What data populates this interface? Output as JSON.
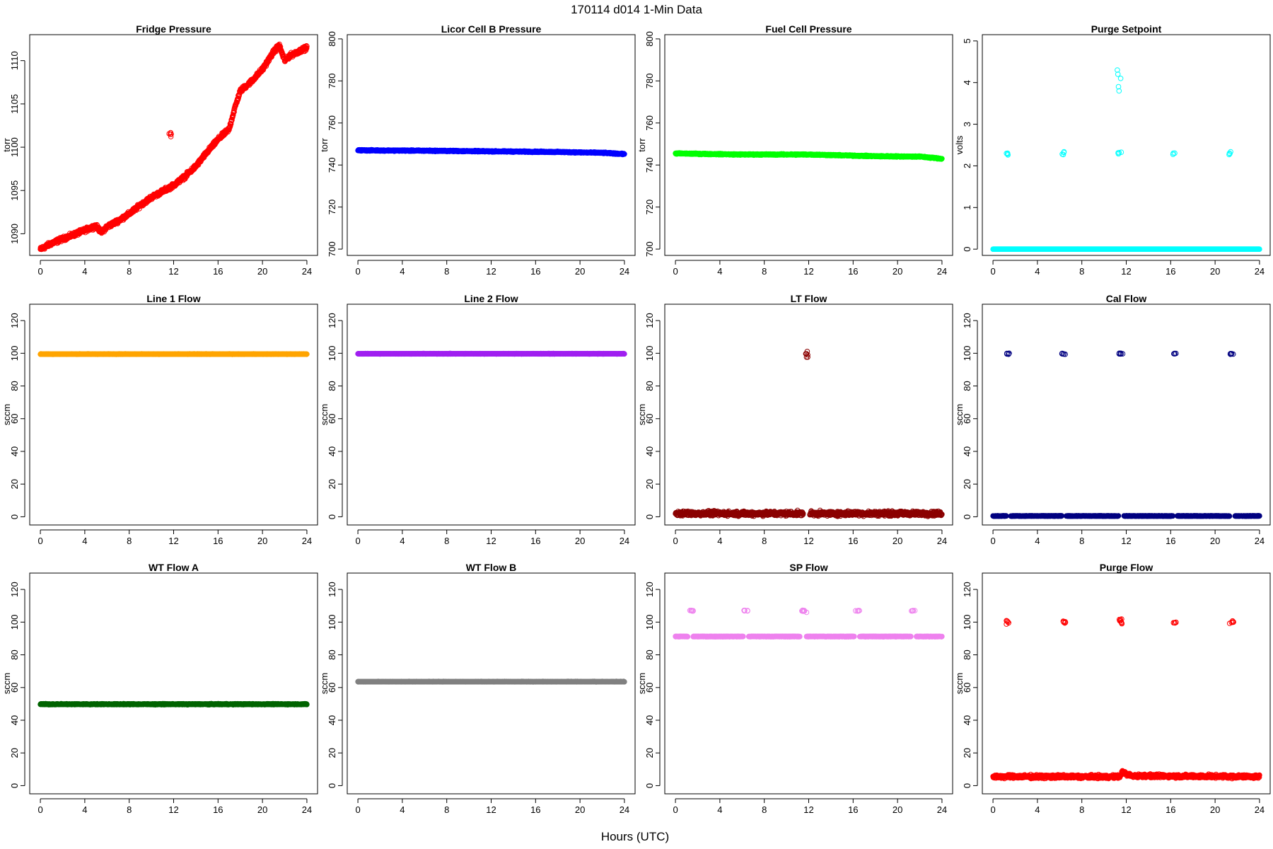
{
  "figure": {
    "title": "170114   d014   1-Min Data",
    "xlabel": "Hours (UTC)"
  },
  "chart_data": [
    {
      "type": "scatter",
      "title": "Fridge Pressure",
      "ylabel": "torr",
      "color": "#ff0000",
      "marker": "open-circle",
      "xlim": [
        0,
        24
      ],
      "ylim": [
        1087.5,
        1113.0
      ],
      "xticks": [
        0,
        4,
        8,
        12,
        16,
        20,
        24
      ],
      "yticks": [
        1090,
        1095,
        1100,
        1105,
        1110
      ],
      "segments": [
        {
          "x": [
            0,
            1,
            2,
            3,
            4,
            5,
            5.5,
            6,
            7,
            8,
            9,
            10,
            11,
            12,
            13,
            14,
            15,
            16,
            17,
            17.5,
            18,
            19,
            20,
            21,
            21.5,
            22,
            22.5,
            23,
            24
          ],
          "y": [
            1088.2,
            1088.9,
            1089.4,
            1089.9,
            1090.4,
            1090.9,
            1090.2,
            1090.8,
            1091.5,
            1092.3,
            1093.3,
            1094.2,
            1094.9,
            1095.6,
            1096.6,
            1097.8,
            1099.4,
            1100.9,
            1102.1,
            1104.5,
            1106.5,
            1107.6,
            1109.0,
            1111.0,
            1111.8,
            1110.0,
            1110.6,
            1110.9,
            1111.5
          ],
          "jitter": 0.35
        }
      ],
      "clusters": [
        {
          "x": 11.7,
          "y": 1101.4,
          "spread_x": 0.12,
          "spread_y": 0.5,
          "n": 6
        }
      ]
    },
    {
      "type": "scatter",
      "title": "Licor Cell B Pressure",
      "ylabel": "torr",
      "color": "#0000ff",
      "marker": "open-circle",
      "xlim": [
        0,
        24
      ],
      "ylim": [
        697,
        802
      ],
      "xticks": [
        0,
        4,
        8,
        12,
        16,
        20,
        24
      ],
      "yticks": [
        700,
        720,
        740,
        760,
        780,
        800
      ],
      "segments": [
        {
          "x": [
            0,
            6,
            12,
            18,
            22,
            24
          ],
          "y": [
            747.0,
            746.8,
            746.5,
            746.2,
            745.8,
            745.2
          ],
          "jitter": 0.4
        }
      ]
    },
    {
      "type": "scatter",
      "title": "Fuel Cell Pressure",
      "ylabel": "torr",
      "color": "#00ff00",
      "marker": "open-circle",
      "xlim": [
        0,
        24
      ],
      "ylim": [
        697,
        802
      ],
      "xticks": [
        0,
        4,
        8,
        12,
        16,
        20,
        24
      ],
      "yticks": [
        700,
        720,
        740,
        760,
        780,
        800
      ],
      "segments": [
        {
          "x": [
            0,
            6,
            12,
            18,
            22,
            24
          ],
          "y": [
            745.5,
            745.0,
            745.0,
            744.2,
            744.0,
            743.0
          ],
          "jitter": 0.4
        }
      ]
    },
    {
      "type": "scatter",
      "title": "Purge Setpoint",
      "ylabel": "volts",
      "color": "#00ffff",
      "marker": "open-circle",
      "xlim": [
        0,
        24
      ],
      "ylim": [
        -0.15,
        5.15
      ],
      "xticks": [
        0,
        4,
        8,
        12,
        16,
        20,
        24
      ],
      "yticks": [
        0,
        1,
        2,
        3,
        4,
        5
      ],
      "segments": [
        {
          "x": [
            0,
            24
          ],
          "y": [
            0.0,
            0.0
          ],
          "jitter": 0.0
        }
      ],
      "clusters": [
        {
          "x": 1.3,
          "y": 2.28,
          "spread_x": 0.1,
          "spread_y": 0.03,
          "n": 4
        },
        {
          "x": 6.3,
          "y": 2.3,
          "spread_x": 0.1,
          "spread_y": 0.04,
          "n": 4
        },
        {
          "x": 11.4,
          "y": 2.3,
          "spread_x": 0.15,
          "spread_y": 0.04,
          "n": 4
        },
        {
          "x": 16.3,
          "y": 2.28,
          "spread_x": 0.1,
          "spread_y": 0.03,
          "n": 3
        },
        {
          "x": 21.4,
          "y": 2.3,
          "spread_x": 0.15,
          "spread_y": 0.04,
          "n": 4
        }
      ],
      "points": [
        [
          11.2,
          4.3
        ],
        [
          11.25,
          4.2
        ],
        [
          11.3,
          3.9
        ],
        [
          11.35,
          3.8
        ],
        [
          11.5,
          4.1
        ]
      ]
    },
    {
      "type": "scatter",
      "title": "Line 1 Flow",
      "ylabel": "sccm",
      "color": "#ffa500",
      "marker": "open-circle",
      "xlim": [
        0,
        24
      ],
      "ylim": [
        -5,
        130
      ],
      "xticks": [
        0,
        4,
        8,
        12,
        16,
        20,
        24
      ],
      "yticks": [
        0,
        20,
        40,
        60,
        80,
        100,
        120
      ],
      "segments": [
        {
          "x": [
            0,
            24
          ],
          "y": [
            99.5,
            99.5
          ],
          "jitter": 0.2
        }
      ]
    },
    {
      "type": "scatter",
      "title": "Line 2 Flow",
      "ylabel": "sccm",
      "color": "#a020f0",
      "marker": "open-circle",
      "xlim": [
        0,
        24
      ],
      "ylim": [
        -5,
        130
      ],
      "xticks": [
        0,
        4,
        8,
        12,
        16,
        20,
        24
      ],
      "yticks": [
        0,
        20,
        40,
        60,
        80,
        100,
        120
      ],
      "segments": [
        {
          "x": [
            0,
            24
          ],
          "y": [
            99.7,
            99.7
          ],
          "jitter": 0.2
        }
      ]
    },
    {
      "type": "scatter",
      "title": "LT Flow",
      "ylabel": "sccm",
      "color": "#8b0000",
      "marker": "open-circle",
      "xlim": [
        0,
        24
      ],
      "ylim": [
        -5,
        130
      ],
      "xticks": [
        0,
        4,
        8,
        12,
        16,
        20,
        24
      ],
      "yticks": [
        0,
        20,
        40,
        60,
        80,
        100,
        120
      ],
      "segments": [
        {
          "x": [
            0,
            11.5
          ],
          "y": [
            2.0,
            2.0
          ],
          "jitter": 2.0
        },
        {
          "x": [
            12.1,
            24
          ],
          "y": [
            2.0,
            2.0
          ],
          "jitter": 2.0
        }
      ],
      "clusters": [
        {
          "x": 11.8,
          "y": 99.5,
          "spread_x": 0.12,
          "spread_y": 2.0,
          "n": 7
        }
      ]
    },
    {
      "type": "scatter",
      "title": "Cal Flow",
      "ylabel": "sccm",
      "color": "#000080",
      "marker": "open-circle",
      "xlim": [
        0,
        24
      ],
      "ylim": [
        -5,
        130
      ],
      "xticks": [
        0,
        4,
        8,
        12,
        16,
        20,
        24
      ],
      "yticks": [
        0,
        20,
        40,
        60,
        80,
        100,
        120
      ],
      "segments": [
        {
          "x": [
            0,
            1.2
          ],
          "y": [
            0.5,
            0.5
          ],
          "jitter": 0.2
        },
        {
          "x": [
            1.6,
            6.2
          ],
          "y": [
            0.5,
            0.5
          ],
          "jitter": 0.2
        },
        {
          "x": [
            6.6,
            11.3
          ],
          "y": [
            0.5,
            0.5
          ],
          "jitter": 0.2
        },
        {
          "x": [
            11.8,
            16.2
          ],
          "y": [
            0.5,
            0.5
          ],
          "jitter": 0.2
        },
        {
          "x": [
            16.6,
            21.3
          ],
          "y": [
            0.5,
            0.5
          ],
          "jitter": 0.2
        },
        {
          "x": [
            21.8,
            24
          ],
          "y": [
            0.5,
            0.5
          ],
          "jitter": 0.2
        }
      ],
      "clusters": [
        {
          "x": 1.4,
          "y": 99.7,
          "spread_x": 0.15,
          "spread_y": 0.3,
          "n": 6
        },
        {
          "x": 6.4,
          "y": 99.7,
          "spread_x": 0.2,
          "spread_y": 0.3,
          "n": 6
        },
        {
          "x": 11.5,
          "y": 99.7,
          "spread_x": 0.2,
          "spread_y": 0.3,
          "n": 6
        },
        {
          "x": 16.4,
          "y": 99.7,
          "spread_x": 0.15,
          "spread_y": 0.3,
          "n": 5
        },
        {
          "x": 21.5,
          "y": 99.7,
          "spread_x": 0.2,
          "spread_y": 0.3,
          "n": 6
        }
      ]
    },
    {
      "type": "scatter",
      "title": "WT Flow A",
      "ylabel": "sccm",
      "color": "#006400",
      "marker": "open-circle",
      "xlim": [
        0,
        24
      ],
      "ylim": [
        -5,
        130
      ],
      "xticks": [
        0,
        4,
        8,
        12,
        16,
        20,
        24
      ],
      "yticks": [
        0,
        20,
        40,
        60,
        80,
        100,
        120
      ],
      "segments": [
        {
          "x": [
            0,
            24
          ],
          "y": [
            49.8,
            49.8
          ],
          "jitter": 0.4
        }
      ]
    },
    {
      "type": "scatter",
      "title": "WT Flow B",
      "ylabel": "sccm",
      "color": "#808080",
      "marker": "open-circle",
      "xlim": [
        0,
        24
      ],
      "ylim": [
        -5,
        130
      ],
      "xticks": [
        0,
        4,
        8,
        12,
        16,
        20,
        24
      ],
      "yticks": [
        0,
        20,
        40,
        60,
        80,
        100,
        120
      ],
      "segments": [
        {
          "x": [
            0,
            24
          ],
          "y": [
            63.6,
            63.6
          ],
          "jitter": 0.2
        }
      ]
    },
    {
      "type": "scatter",
      "title": "SP Flow",
      "ylabel": "sccm",
      "color": "#ee82ee",
      "marker": "open-circle",
      "xlim": [
        0,
        24
      ],
      "ylim": [
        -5,
        130
      ],
      "xticks": [
        0,
        4,
        8,
        12,
        16,
        20,
        24
      ],
      "yticks": [
        0,
        20,
        40,
        60,
        80,
        100,
        120
      ],
      "segments": [
        {
          "x": [
            0,
            1.1
          ],
          "y": [
            91.2,
            91.2
          ],
          "jitter": 0.2
        },
        {
          "x": [
            1.6,
            6.1
          ],
          "y": [
            91.2,
            91.2
          ],
          "jitter": 0.2
        },
        {
          "x": [
            6.6,
            11.2
          ],
          "y": [
            91.2,
            91.2
          ],
          "jitter": 0.2
        },
        {
          "x": [
            11.8,
            16.1
          ],
          "y": [
            91.2,
            91.2
          ],
          "jitter": 0.2
        },
        {
          "x": [
            16.6,
            21.2
          ],
          "y": [
            91.2,
            91.2
          ],
          "jitter": 0.2
        },
        {
          "x": [
            21.7,
            24
          ],
          "y": [
            91.2,
            91.2
          ],
          "jitter": 0.2
        }
      ],
      "clusters": [
        {
          "x": 1.4,
          "y": 107.0,
          "spread_x": 0.2,
          "spread_y": 0.2,
          "n": 6
        },
        {
          "x": 6.4,
          "y": 107.0,
          "spread_x": 0.25,
          "spread_y": 0.2,
          "n": 6
        },
        {
          "x": 11.5,
          "y": 107.0,
          "spread_x": 0.25,
          "spread_y": 0.5,
          "n": 7
        },
        {
          "x": 16.4,
          "y": 107.0,
          "spread_x": 0.2,
          "spread_y": 0.2,
          "n": 5
        },
        {
          "x": 21.5,
          "y": 107.0,
          "spread_x": 0.25,
          "spread_y": 0.2,
          "n": 6
        }
      ],
      "points": [
        [
          11.8,
          106.0
        ]
      ]
    },
    {
      "type": "scatter",
      "title": "Purge Flow",
      "ylabel": "sccm",
      "color": "#ff0000",
      "marker": "open-circle",
      "xlim": [
        0,
        24
      ],
      "ylim": [
        -5,
        130
      ],
      "xticks": [
        0,
        4,
        8,
        12,
        16,
        20,
        24
      ],
      "yticks": [
        0,
        20,
        40,
        60,
        80,
        100,
        120
      ],
      "segments": [
        {
          "x": [
            0,
            11.5
          ],
          "y": [
            5.5,
            5.5
          ],
          "jitter": 1.5
        },
        {
          "x": [
            11.6,
            12.0,
            12.5,
            24
          ],
          "y": [
            9.0,
            7.0,
            6.0,
            5.5
          ],
          "jitter": 1.5
        }
      ],
      "clusters": [
        {
          "x": 1.3,
          "y": 100.0,
          "spread_x": 0.12,
          "spread_y": 1.2,
          "n": 6
        },
        {
          "x": 6.4,
          "y": 100.0,
          "spread_x": 0.2,
          "spread_y": 0.8,
          "n": 6
        },
        {
          "x": 11.5,
          "y": 100.5,
          "spread_x": 0.2,
          "spread_y": 1.5,
          "n": 8
        },
        {
          "x": 16.4,
          "y": 100.0,
          "spread_x": 0.15,
          "spread_y": 0.5,
          "n": 5
        },
        {
          "x": 21.5,
          "y": 100.0,
          "spread_x": 0.2,
          "spread_y": 0.8,
          "n": 6
        }
      ]
    }
  ]
}
